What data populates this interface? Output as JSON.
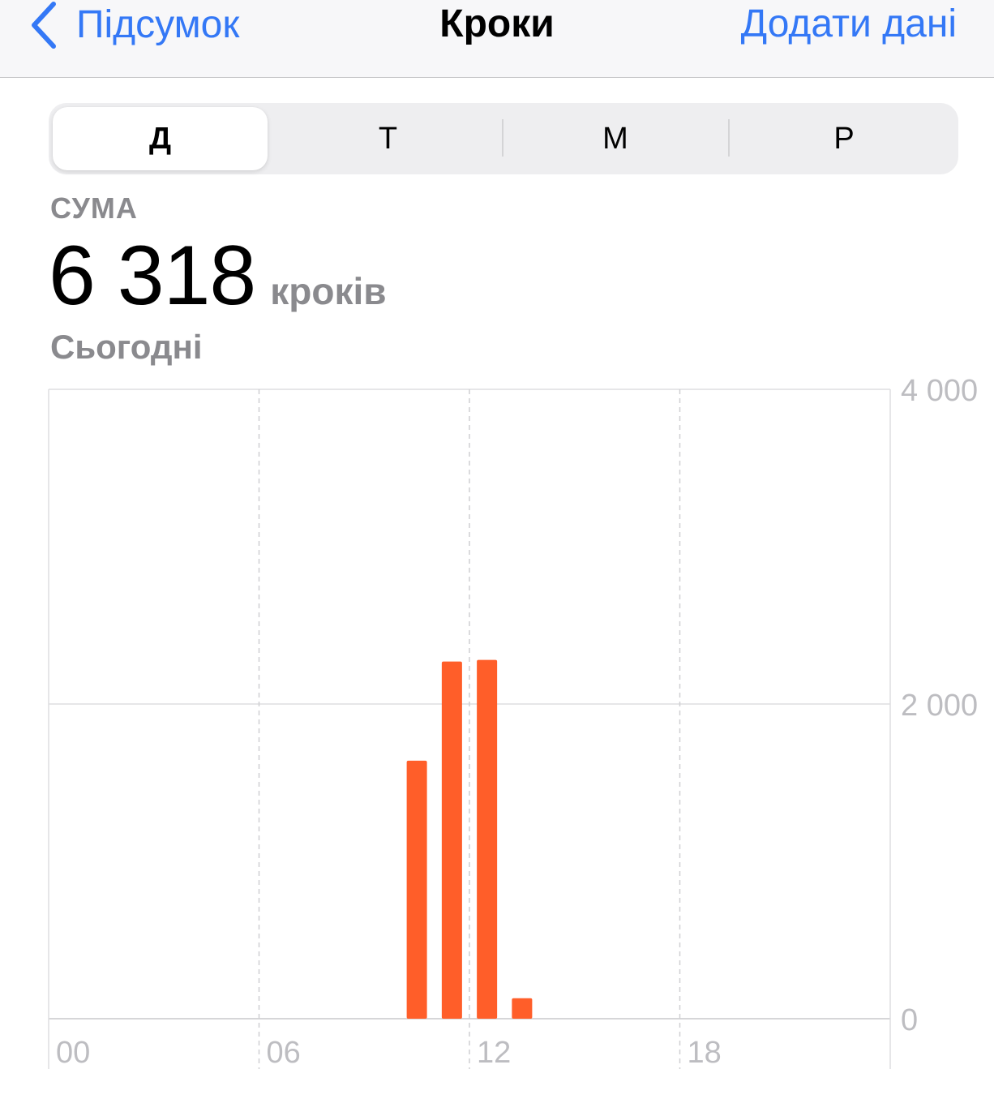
{
  "nav": {
    "back_label": "Підсумок",
    "title": "Кроки",
    "action_label": "Додати дані"
  },
  "segments": [
    "Д",
    "Т",
    "М",
    "Р"
  ],
  "active_segment": 0,
  "summary": {
    "label": "СУМА",
    "value": "6 318",
    "unit": "кроків",
    "date": "Сьогодні"
  },
  "colors": {
    "accent": "#3478f6",
    "bar": "#ff5e29",
    "secondary_text": "#8a8a8e",
    "axis_text": "#bdbdc1"
  },
  "chart_data": {
    "type": "bar",
    "title": "",
    "xlabel": "",
    "ylabel": "",
    "x": [
      10,
      11,
      12,
      13
    ],
    "values": [
      1640,
      2270,
      2280,
      130
    ],
    "xlim": [
      0,
      24
    ],
    "ylim": [
      0,
      4000
    ],
    "x_ticks": [
      {
        "value": 0,
        "label": "00"
      },
      {
        "value": 6,
        "label": "06"
      },
      {
        "value": 12,
        "label": "12"
      },
      {
        "value": 18,
        "label": "18"
      }
    ],
    "y_ticks": [
      {
        "value": 0,
        "label": "0"
      },
      {
        "value": 2000,
        "label": "2 000"
      },
      {
        "value": 4000,
        "label": "4 000"
      }
    ],
    "grid": true,
    "y_axis_side": "right"
  }
}
